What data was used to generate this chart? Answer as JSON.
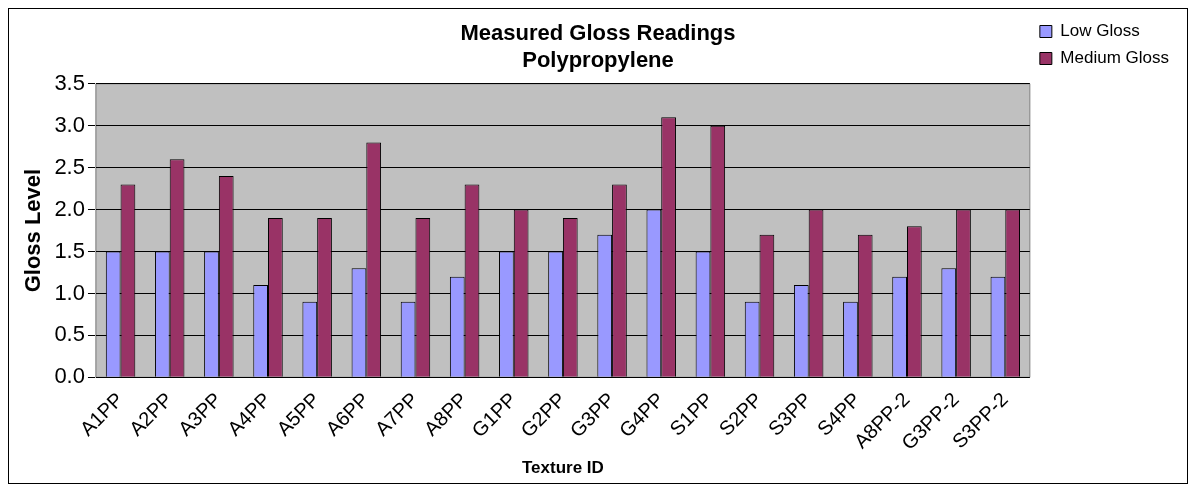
{
  "chart_data": {
    "type": "bar",
    "title": [
      "Measured Gloss Readings",
      "Polypropylene"
    ],
    "xlabel": "Texture ID",
    "ylabel": "Gloss Level",
    "categories": [
      "A1PP",
      "A2PP",
      "A3PP",
      "A4PP",
      "A5PP",
      "A6PP",
      "A7PP",
      "A8PP",
      "G1PP",
      "G2PP",
      "G3PP",
      "G4PP",
      "S1PP",
      "S2PP",
      "S3PP",
      "S4PP",
      "A8PP-2",
      "G3PP-2",
      "S3PP-2"
    ],
    "series": [
      {
        "name": "Low Gloss",
        "color": "#9999ff",
        "values": [
          1.5,
          1.5,
          1.5,
          1.1,
          0.9,
          1.3,
          0.9,
          1.2,
          1.5,
          1.5,
          1.7,
          2.0,
          1.5,
          0.9,
          1.1,
          0.9,
          1.2,
          1.3,
          1.2
        ]
      },
      {
        "name": "Medium Gloss",
        "color": "#993366",
        "values": [
          2.3,
          2.6,
          2.4,
          1.9,
          1.9,
          2.8,
          1.9,
          2.3,
          2.0,
          1.9,
          2.3,
          3.1,
          3.0,
          1.7,
          2.0,
          1.7,
          1.8,
          2.0,
          2.0
        ]
      }
    ],
    "ylim": [
      0,
      3.5
    ],
    "yticks": [
      {
        "value": 0,
        "label": "0.0"
      },
      {
        "value": 0.5,
        "label": "0.5"
      },
      {
        "value": 1,
        "label": "1.0"
      },
      {
        "value": 1.5,
        "label": "1.5"
      },
      {
        "value": 2,
        "label": "2.0"
      },
      {
        "value": 2.5,
        "label": "2.5"
      },
      {
        "value": 3,
        "label": "3.0"
      },
      {
        "value": 3.5,
        "label": "3.5"
      }
    ],
    "grid": "y",
    "legend": "top right"
  }
}
